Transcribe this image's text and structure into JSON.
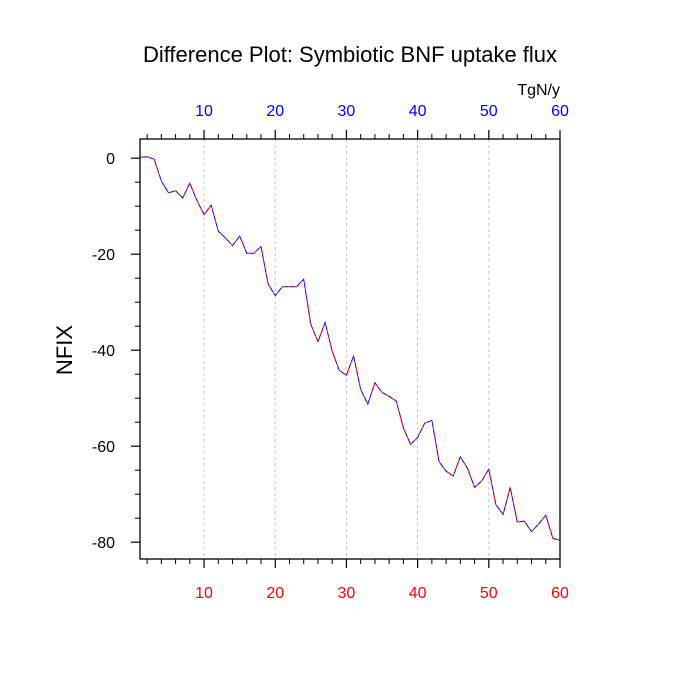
{
  "chart_data": {
    "type": "line",
    "title": "Difference Plot: Symbiotic BNF uptake flux",
    "units": "TgN/y",
    "ylabel": "NFIX",
    "xlim": [
      1,
      60
    ],
    "ylim": [
      -83.5,
      4
    ],
    "x_ticks": [
      10,
      20,
      30,
      40,
      50,
      60
    ],
    "y_ticks": [
      0,
      -20,
      -40,
      -60,
      -80
    ],
    "x_tick_labels": [
      "10",
      "20",
      "30",
      "40",
      "50",
      "60"
    ],
    "y_tick_labels": [
      "0",
      "-20",
      "-40",
      "-60",
      "-80"
    ],
    "grid": "vertical-dashed",
    "colors": {
      "bottom_ticks": "#ff0000",
      "top_ticks": "#0000ff",
      "line_primary": "#ff0000",
      "line_secondary": "#0000ff",
      "grid": "#bbbbbb"
    },
    "series": [
      {
        "x": [
          1,
          2,
          3,
          4,
          5,
          6,
          7,
          8,
          9,
          10,
          11,
          12,
          13,
          14,
          15,
          16,
          17,
          18,
          19,
          20,
          21,
          22,
          23,
          24,
          25,
          26,
          27,
          28,
          29,
          30,
          31,
          32,
          33,
          34,
          35,
          36,
          37,
          38,
          39,
          40,
          41,
          42,
          43,
          44,
          45,
          46,
          47,
          48,
          49,
          50,
          51,
          52,
          53,
          54,
          55,
          56,
          57,
          58,
          59,
          60
        ],
        "values": [
          0.2,
          0.3,
          -0.2,
          -4.8,
          -7.2,
          -6.8,
          -8.3,
          -5.2,
          -8.8,
          -11.8,
          -9.8,
          -15.2,
          -16.6,
          -18.2,
          -16.2,
          -19.8,
          -19.8,
          -18.4,
          -26.2,
          -28.6,
          -26.8,
          -26.8,
          -26.8,
          -25.2,
          -34.6,
          -38.2,
          -34.2,
          -40.2,
          -44.2,
          -45.2,
          -41.2,
          -48.2,
          -51.2,
          -46.8,
          -48.8,
          -49.6,
          -50.6,
          -56.2,
          -59.6,
          -58.2,
          -55.2,
          -54.6,
          -63.2,
          -65.2,
          -66.2,
          -62.2,
          -64.6,
          -68.6,
          -67.2,
          -64.8,
          -72.2,
          -74.2,
          -68.6,
          -75.8,
          -75.6,
          -77.8,
          -76.2,
          -74.4,
          -79.2,
          -79.6
        ]
      }
    ]
  }
}
